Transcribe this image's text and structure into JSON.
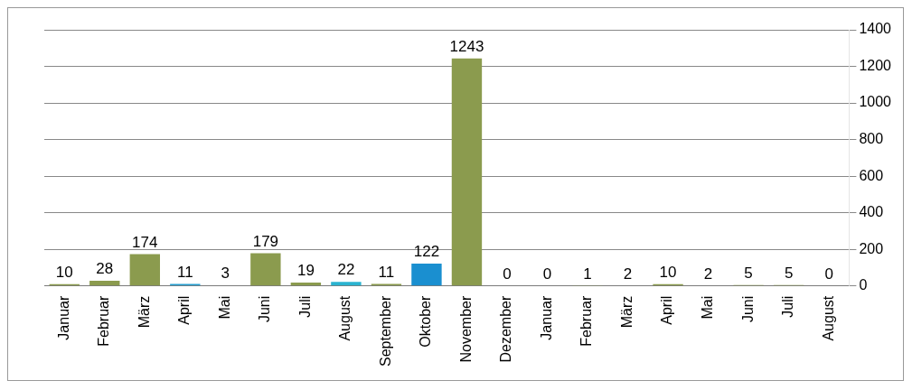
{
  "chart_data": {
    "type": "bar",
    "categories": [
      "Januar",
      "Februar",
      "März",
      "April",
      "Mai",
      "Juni",
      "Juli",
      "August",
      "September",
      "Oktober",
      "November",
      "Dezember",
      "Januar",
      "Februar",
      "März",
      "April",
      "Mai",
      "Juni",
      "Juli",
      "August"
    ],
    "values": [
      10,
      28,
      174,
      11,
      3,
      179,
      19,
      22,
      11,
      122,
      1243,
      0,
      0,
      1,
      2,
      10,
      2,
      5,
      5,
      0
    ],
    "colors": [
      "#8b9b4e",
      "#8b9b4e",
      "#8b9b4e",
      "#2a9fd0",
      "#8b9b4e",
      "#8b9b4e",
      "#8b9b4e",
      "#2ab3d0",
      "#8b9b4e",
      "#1a8fd0",
      "#8b9b4e",
      "#8b9b4e",
      "#8b9b4e",
      "#8b9b4e",
      "#8b9b4e",
      "#8b9b4e",
      "#8b9b4e",
      "#8b9b4e",
      "#8b9b4e",
      "#8b9b4e"
    ],
    "ylim": [
      0,
      1400
    ],
    "yticks": [
      0,
      200,
      400,
      600,
      800,
      1000,
      1200,
      1400
    ],
    "grid": "y",
    "data_labels": true,
    "legend": false
  }
}
